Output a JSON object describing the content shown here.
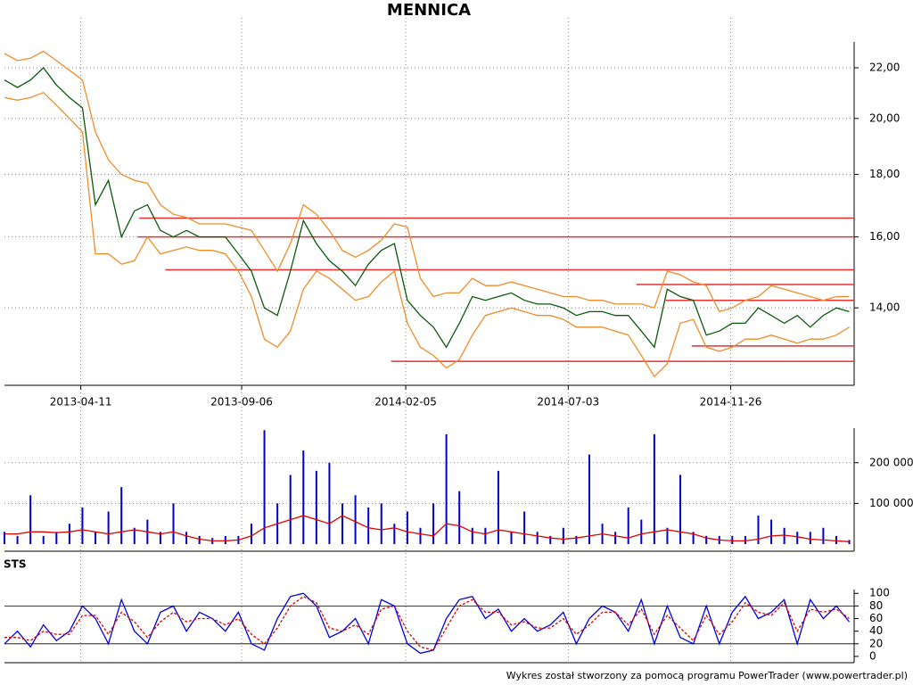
{
  "chart_data": [
    {
      "type": "price",
      "title": "MENNICA",
      "log_scale": true,
      "grid": true,
      "x": [
        0,
        8,
        16,
        24,
        32,
        40,
        48,
        56,
        64,
        72,
        80,
        88,
        96,
        104,
        112,
        120,
        128,
        136,
        144,
        152,
        160,
        168,
        176,
        184,
        192,
        200,
        208,
        216,
        224,
        232,
        240,
        248,
        256,
        264,
        272,
        280,
        288,
        296,
        304,
        312,
        320,
        328,
        336,
        344,
        352,
        360,
        368,
        376,
        384,
        392,
        400,
        408,
        416,
        424,
        432,
        440,
        448,
        456,
        464,
        472,
        480,
        488,
        496,
        504,
        512,
        520
      ],
      "xlim": [
        0,
        523
      ],
      "xticks": [
        {
          "value": 47,
          "label": "2013-04-11"
        },
        {
          "value": 146,
          "label": "2013-09-06"
        },
        {
          "value": 247,
          "label": "2014-02-05"
        },
        {
          "value": 347,
          "label": "2014-07-03"
        },
        {
          "value": 447,
          "label": "2014-11-26"
        }
      ],
      "ylim": [
        12.1,
        23.1
      ],
      "yticks": [
        {
          "value": 14,
          "label": "14,00"
        },
        {
          "value": 16,
          "label": "16,00"
        },
        {
          "value": 18,
          "label": "18,00"
        },
        {
          "value": 20,
          "label": "20,00"
        },
        {
          "value": 22,
          "label": "22,00"
        }
      ],
      "series": [
        {
          "color": "#0a5a0a",
          "values": [
            21.5,
            21.2,
            21.5,
            22.0,
            21.3,
            20.8,
            20.4,
            17.0,
            17.8,
            16.0,
            16.8,
            17.0,
            16.2,
            16.0,
            16.2,
            16.0,
            16.0,
            16.0,
            15.5,
            15.0,
            14.0,
            13.8,
            15.0,
            16.5,
            15.8,
            15.3,
            15.0,
            14.6,
            15.2,
            15.6,
            15.8,
            14.2,
            13.8,
            13.5,
            13.0,
            13.6,
            14.3,
            14.2,
            14.3,
            14.4,
            14.2,
            14.1,
            14.1,
            14.0,
            13.8,
            13.9,
            13.9,
            13.8,
            13.8,
            13.4,
            13.0,
            14.5,
            14.3,
            14.2,
            13.3,
            13.4,
            13.6,
            13.6,
            14.0,
            13.8,
            13.6,
            13.8,
            13.5,
            13.8,
            14.0,
            13.9
          ]
        },
        {
          "color": "#f08c28",
          "values": [
            22.6,
            22.3,
            22.4,
            22.7,
            22.3,
            21.9,
            21.5,
            19.5,
            18.5,
            18.0,
            17.8,
            17.7,
            17.0,
            16.7,
            16.6,
            16.4,
            16.4,
            16.4,
            16.3,
            16.2,
            15.6,
            15.0,
            15.8,
            17.0,
            16.7,
            16.2,
            15.6,
            15.4,
            15.6,
            15.9,
            16.4,
            16.3,
            14.8,
            14.3,
            14.4,
            14.4,
            14.8,
            14.6,
            14.6,
            14.7,
            14.6,
            14.5,
            14.4,
            14.3,
            14.3,
            14.2,
            14.2,
            14.1,
            14.1,
            14.1,
            14.0,
            15.0,
            14.9,
            14.7,
            14.6,
            13.9,
            14.0,
            14.2,
            14.3,
            14.6,
            14.5,
            14.4,
            14.3,
            14.2,
            14.3,
            14.3
          ]
        },
        {
          "color": "#f08c28",
          "values": [
            20.8,
            20.7,
            20.8,
            21.0,
            20.5,
            20.0,
            19.5,
            15.5,
            15.5,
            15.2,
            15.3,
            16.0,
            15.5,
            15.6,
            15.7,
            15.6,
            15.6,
            15.5,
            15.0,
            14.3,
            13.2,
            13.0,
            13.4,
            14.5,
            15.0,
            14.8,
            14.5,
            14.2,
            14.3,
            14.7,
            15.0,
            13.6,
            13.0,
            12.8,
            12.5,
            12.7,
            13.3,
            13.8,
            13.9,
            14.0,
            13.9,
            13.8,
            13.8,
            13.7,
            13.5,
            13.5,
            13.5,
            13.4,
            13.3,
            12.8,
            12.3,
            12.6,
            13.6,
            13.7,
            13.0,
            12.9,
            13.0,
            13.2,
            13.2,
            13.3,
            13.2,
            13.1,
            13.2,
            13.2,
            13.3,
            13.5
          ]
        }
      ],
      "levels_color": "#e83030",
      "levels": [
        {
          "y": 16.58,
          "x0": 83
        },
        {
          "y": 16.0,
          "x0": 82
        },
        {
          "y": 15.04,
          "x0": 99
        },
        {
          "y": 14.63,
          "x0": 389
        },
        {
          "y": 14.2,
          "x0": 407
        },
        {
          "y": 13.03,
          "x0": 423
        },
        {
          "y": 12.66,
          "x0": 238
        }
      ]
    },
    {
      "type": "volume",
      "grid": true,
      "x": [
        0,
        8,
        16,
        24,
        32,
        40,
        48,
        56,
        64,
        72,
        80,
        88,
        96,
        104,
        112,
        120,
        128,
        136,
        144,
        152,
        160,
        168,
        176,
        184,
        192,
        200,
        208,
        216,
        224,
        232,
        240,
        248,
        256,
        264,
        272,
        280,
        288,
        296,
        304,
        312,
        320,
        328,
        336,
        344,
        352,
        360,
        368,
        376,
        384,
        392,
        400,
        408,
        416,
        424,
        432,
        440,
        448,
        456,
        464,
        472,
        480,
        488,
        496,
        504,
        512,
        520
      ],
      "xlim": [
        0,
        523
      ],
      "ylim": [
        0,
        285000
      ],
      "yticks": [
        {
          "value": 100000,
          "label": "100 000"
        },
        {
          "value": 200000,
          "label": "200 000"
        }
      ],
      "series": [
        {
          "color": "#0000cc",
          "values": [
            30000,
            20000,
            120000,
            20000,
            30000,
            50000,
            90000,
            30000,
            80000,
            140000,
            40000,
            60000,
            30000,
            100000,
            30000,
            20000,
            15000,
            20000,
            20000,
            50000,
            280000,
            100000,
            170000,
            230000,
            180000,
            200000,
            100000,
            120000,
            90000,
            100000,
            50000,
            80000,
            40000,
            100000,
            270000,
            130000,
            40000,
            40000,
            180000,
            30000,
            80000,
            30000,
            20000,
            40000,
            20000,
            220000,
            50000,
            30000,
            90000,
            60000,
            270000,
            40000,
            170000,
            30000,
            20000,
            20000,
            20000,
            20000,
            70000,
            60000,
            40000,
            30000,
            30000,
            40000,
            20000,
            10000
          ]
        },
        {
          "color": "#e00000",
          "values": [
            25000,
            25000,
            30000,
            30000,
            28000,
            30000,
            35000,
            30000,
            25000,
            30000,
            35000,
            30000,
            25000,
            30000,
            20000,
            12000,
            8000,
            8000,
            10000,
            20000,
            40000,
            50000,
            60000,
            70000,
            60000,
            50000,
            70000,
            55000,
            40000,
            35000,
            40000,
            30000,
            25000,
            20000,
            50000,
            45000,
            30000,
            25000,
            35000,
            30000,
            25000,
            20000,
            15000,
            12000,
            15000,
            20000,
            25000,
            20000,
            15000,
            25000,
            30000,
            35000,
            30000,
            25000,
            15000,
            10000,
            8000,
            8000,
            12000,
            20000,
            22000,
            18000,
            12000,
            10000,
            8000,
            6000
          ]
        }
      ]
    },
    {
      "type": "oscillator",
      "title": "STS",
      "grid": true,
      "x": [
        0,
        8,
        16,
        24,
        32,
        40,
        48,
        56,
        64,
        72,
        80,
        88,
        96,
        104,
        112,
        120,
        128,
        136,
        144,
        152,
        160,
        168,
        176,
        184,
        192,
        200,
        208,
        216,
        224,
        232,
        240,
        248,
        256,
        264,
        272,
        280,
        288,
        296,
        304,
        312,
        320,
        328,
        336,
        344,
        352,
        360,
        368,
        376,
        384,
        392,
        400,
        408,
        416,
        424,
        432,
        440,
        448,
        456,
        464,
        472,
        480,
        488,
        496,
        504,
        512,
        520
      ],
      "xlim": [
        0,
        523
      ],
      "ylim": [
        -10,
        106
      ],
      "yticks": [
        0,
        20,
        40,
        60,
        80,
        100
      ],
      "hlines": [
        20,
        80
      ],
      "series": [
        {
          "color": "#0000dd",
          "values": [
            20,
            40,
            15,
            50,
            25,
            40,
            80,
            60,
            20,
            90,
            40,
            20,
            70,
            80,
            40,
            70,
            60,
            40,
            70,
            20,
            10,
            60,
            95,
            100,
            80,
            30,
            40,
            60,
            20,
            90,
            80,
            20,
            5,
            10,
            60,
            90,
            95,
            60,
            75,
            40,
            60,
            40,
            50,
            70,
            20,
            60,
            80,
            70,
            40,
            90,
            20,
            80,
            30,
            20,
            80,
            20,
            70,
            95,
            60,
            70,
            90,
            20,
            90,
            60,
            80,
            55
          ]
        },
        {
          "color": "#dd0000",
          "values": [
            30,
            30,
            25,
            40,
            35,
            35,
            65,
            65,
            35,
            70,
            55,
            30,
            55,
            70,
            55,
            60,
            60,
            50,
            60,
            35,
            20,
            45,
            80,
            95,
            85,
            45,
            40,
            50,
            35,
            75,
            80,
            40,
            15,
            10,
            45,
            80,
            90,
            70,
            70,
            50,
            55,
            45,
            45,
            60,
            35,
            50,
            70,
            70,
            50,
            75,
            35,
            65,
            45,
            25,
            65,
            35,
            55,
            85,
            70,
            65,
            85,
            40,
            75,
            70,
            75,
            60
          ]
        }
      ]
    }
  ],
  "footer": "Wykres został stworzony za pomocą programu PowerTrader (www.powertrader.pl)"
}
